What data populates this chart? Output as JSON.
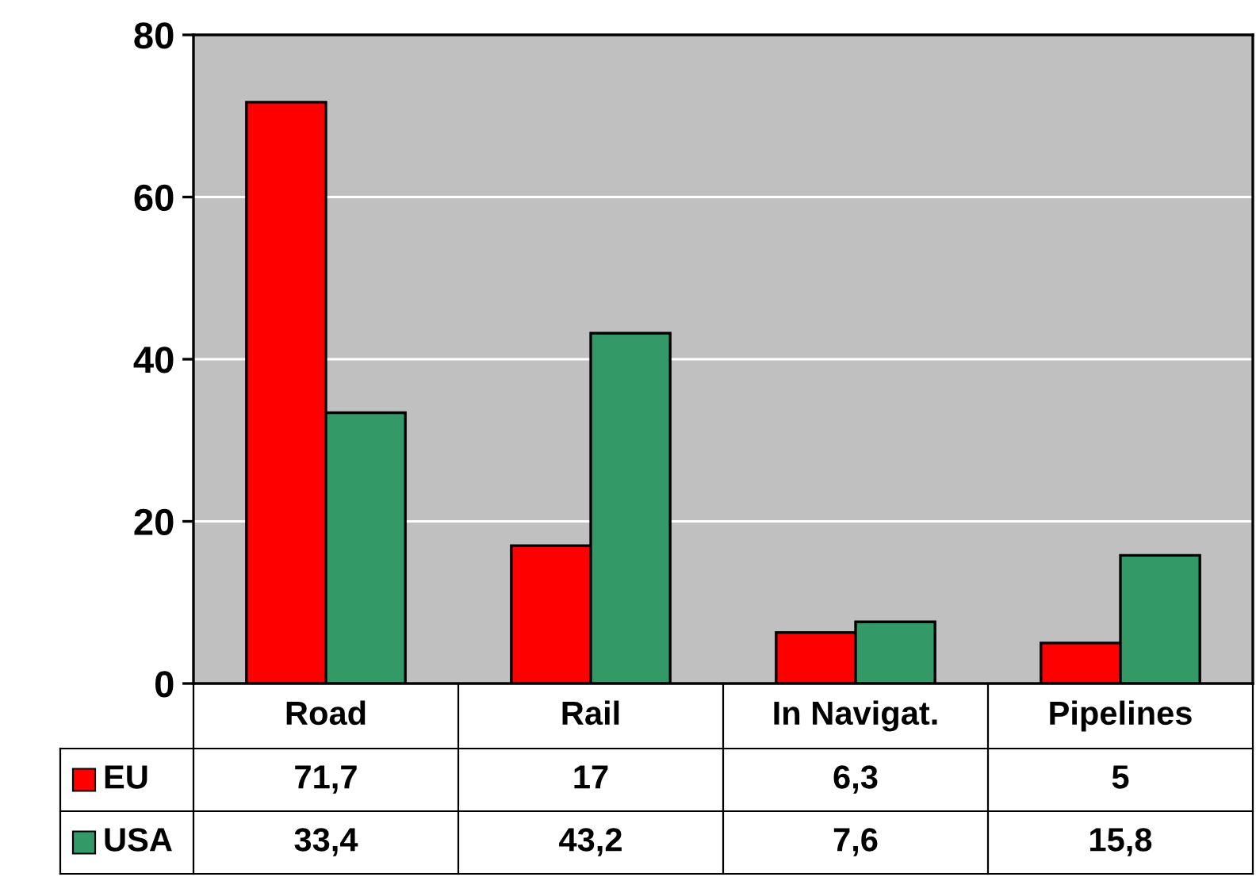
{
  "chart_data": {
    "type": "bar",
    "categories": [
      "Road",
      "Rail",
      "In Navigat.",
      "Pipelines"
    ],
    "series": [
      {
        "name": "EU",
        "color": "#ff0000",
        "values": [
          71.7,
          17,
          6.3,
          5
        ],
        "value_labels": [
          "71,7",
          "17",
          "6,3",
          "5"
        ]
      },
      {
        "name": "USA",
        "color": "#339966",
        "values": [
          33.4,
          43.2,
          7.6,
          15.8
        ],
        "value_labels": [
          "33,4",
          "43,2",
          "7,6",
          "15,8"
        ]
      }
    ],
    "ylim": [
      0,
      80
    ],
    "yticks": [
      0,
      20,
      40,
      60,
      80
    ],
    "grid": "y",
    "legend": "bottom left"
  }
}
